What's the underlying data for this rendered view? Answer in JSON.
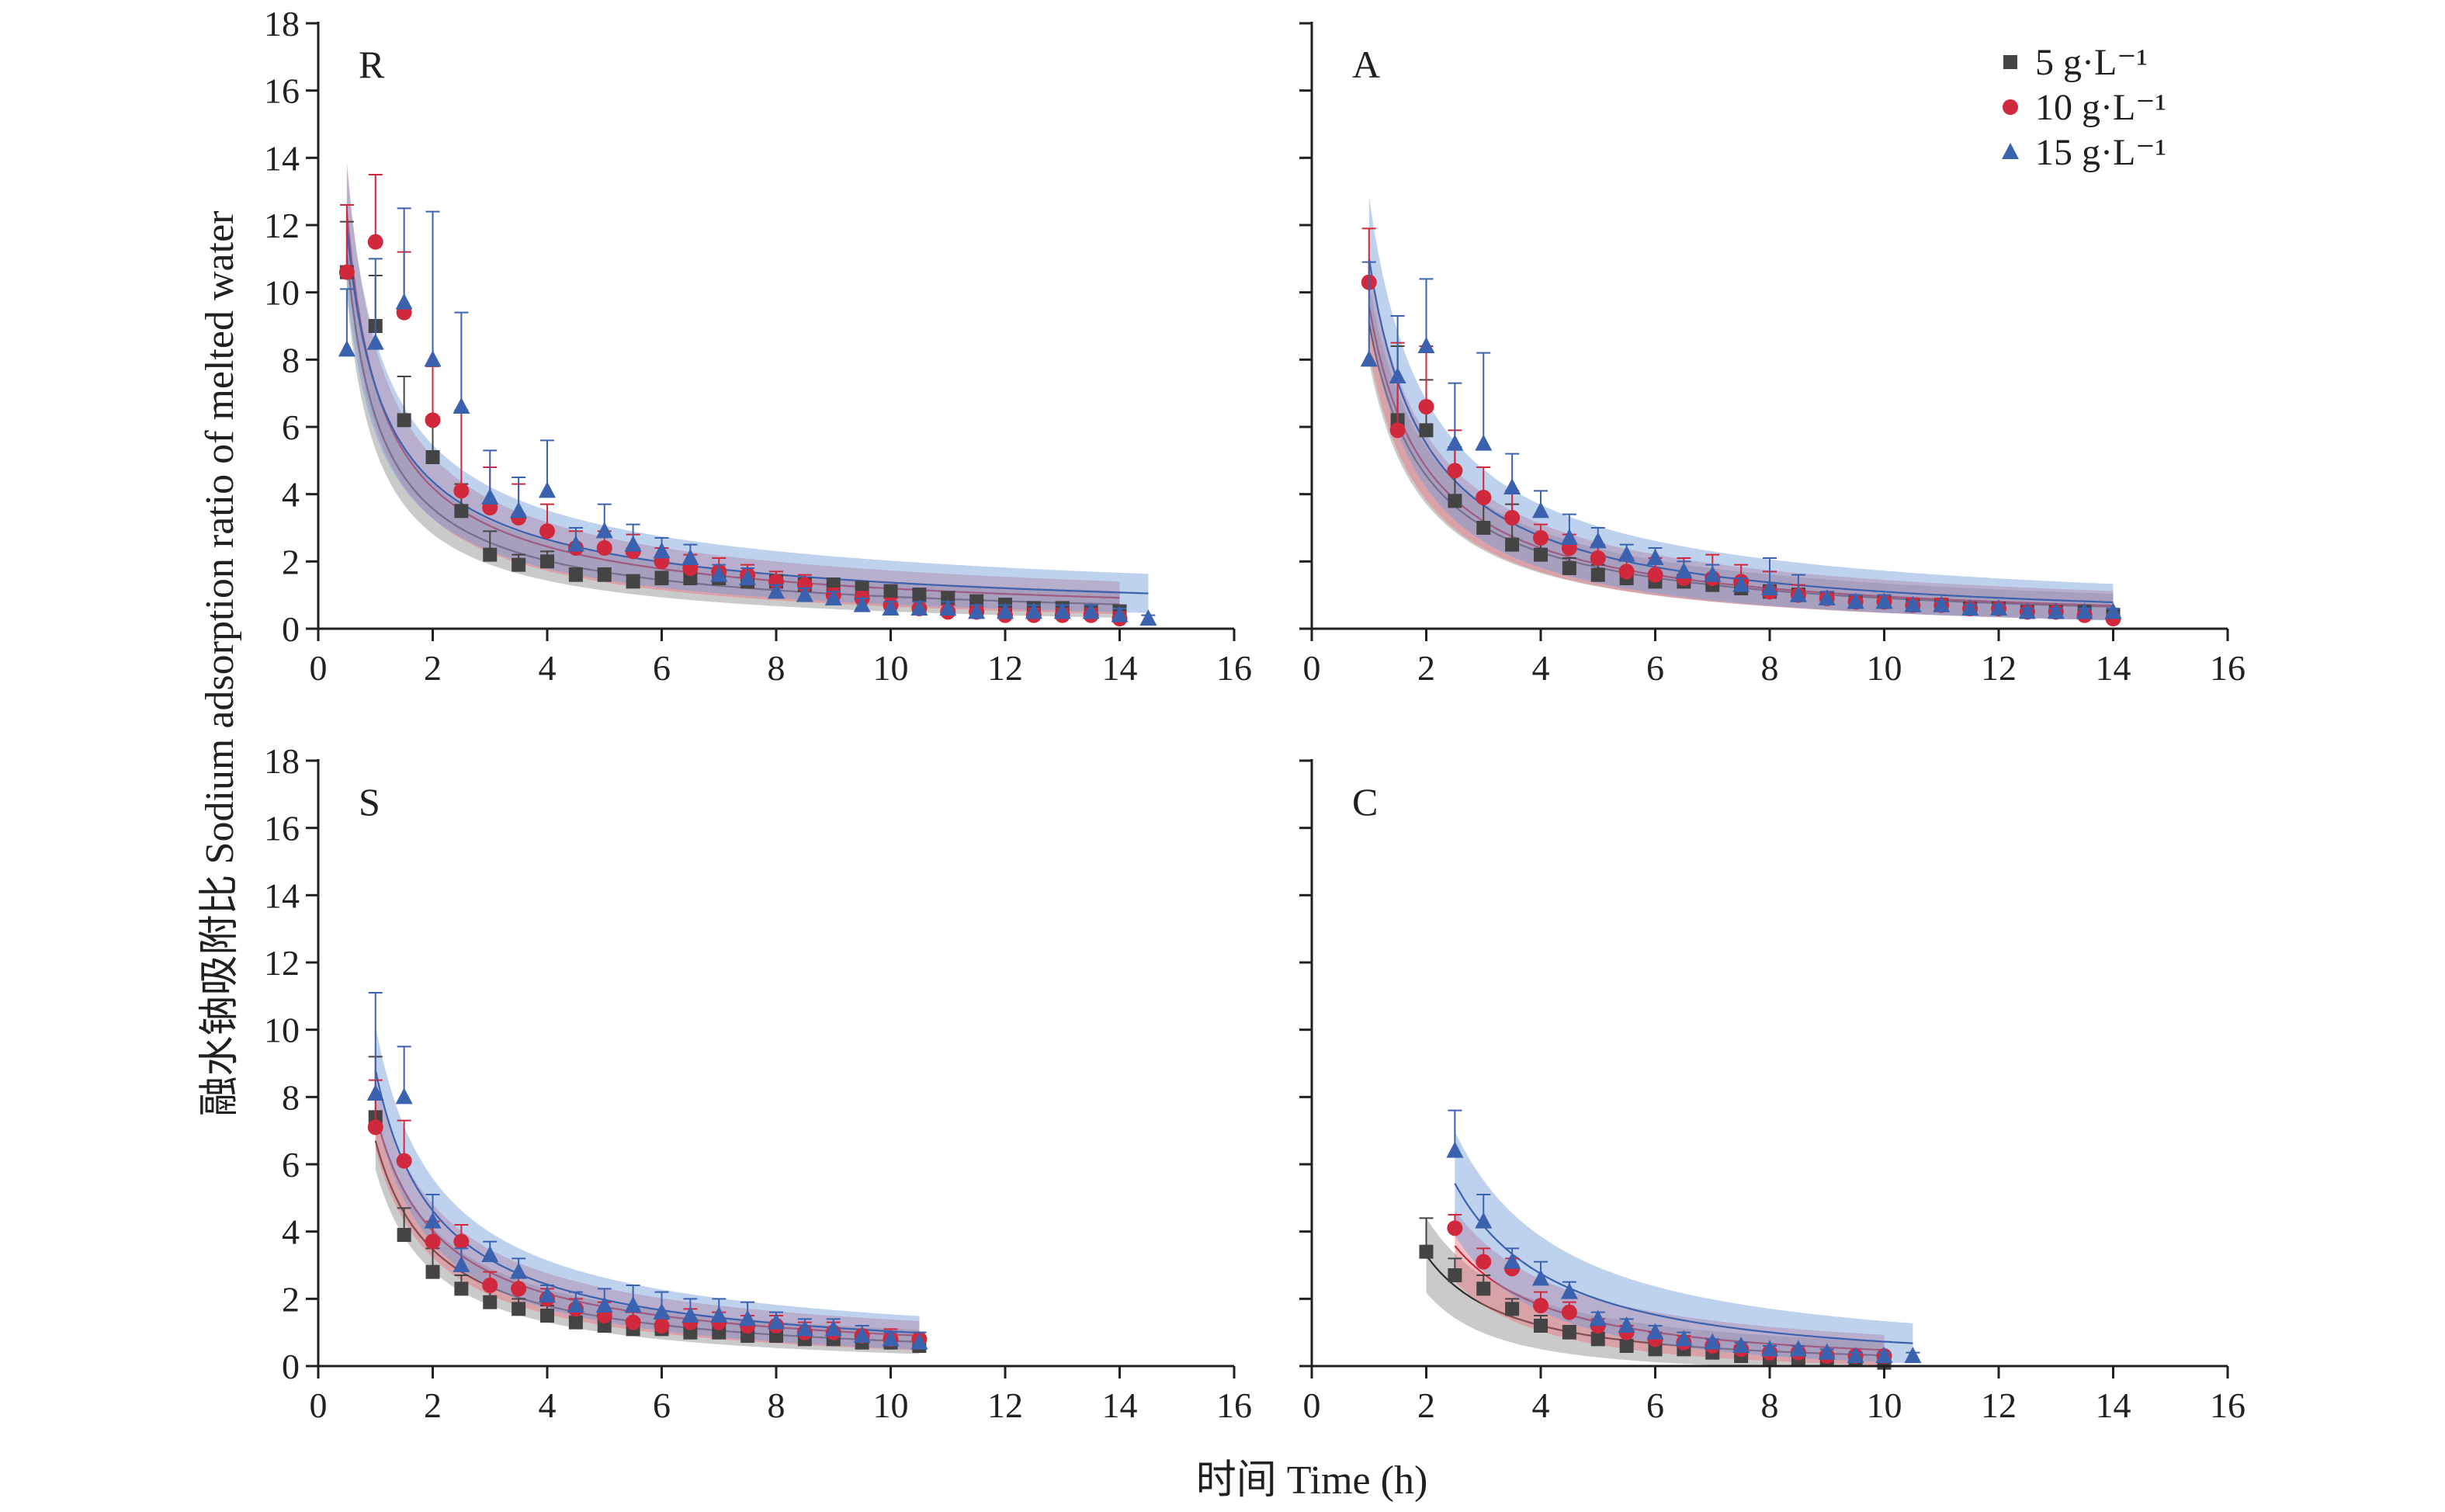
{
  "figure": {
    "ylabel": "融水钠吸附比 Sodium adsorption ratio of melted water",
    "xlabel": "时间 Time (h)"
  },
  "legend": [
    {
      "label": "5 g·L⁻¹",
      "color": "#444444",
      "marker": "square"
    },
    {
      "label": "10 g·L⁻¹",
      "color": "#d0283c",
      "marker": "circle"
    },
    {
      "label": "15 g·L⁻¹",
      "color": "#3a62ae",
      "marker": "triangle"
    }
  ],
  "colors": {
    "s5": {
      "marker": "#444444",
      "line": "#2c2c2c",
      "band": "#8a8a8a"
    },
    "s10": {
      "marker": "#d0283c",
      "line": "#c8283c",
      "band": "#e8707e"
    },
    "s15": {
      "marker": "#3a62ae",
      "line": "#3a62ae",
      "band": "#6f9ad8"
    }
  },
  "chart_data": [
    {
      "type": "scatter",
      "panel": "R",
      "xlim": [
        0,
        16
      ],
      "ylim": [
        0,
        18
      ],
      "xticks": [
        "0",
        "2",
        "4",
        "6",
        "8",
        "10",
        "12",
        "14",
        "16"
      ],
      "yticks": [
        "0",
        "2",
        "4",
        "6",
        "8",
        "10",
        "12",
        "14",
        "16",
        "18"
      ],
      "series": [
        {
          "name": "5 g·L⁻¹",
          "x": [
            0.5,
            1,
            1.5,
            2,
            2.5,
            3,
            3.5,
            4,
            4.5,
            5,
            5.5,
            6,
            6.5,
            7,
            7.5,
            8,
            8.5,
            9,
            9.5,
            10,
            10.5,
            11,
            11.5,
            12,
            12.5,
            13,
            13.5,
            14
          ],
          "y": [
            10.6,
            9.0,
            6.2,
            5.1,
            3.5,
            2.2,
            1.9,
            2.0,
            1.6,
            1.6,
            1.4,
            1.5,
            1.5,
            1.5,
            1.4,
            1.4,
            1.3,
            1.3,
            1.2,
            1.1,
            1.0,
            0.9,
            0.8,
            0.7,
            0.6,
            0.6,
            0.5,
            0.5
          ],
          "err": [
            1.5,
            1.5,
            1.3,
            1.2,
            0.8,
            0.7,
            0.3,
            0.3,
            0.2,
            0.2,
            0.2,
            0.2,
            0.2,
            0.2,
            0.2,
            0.2,
            0.2,
            0.2,
            0.2,
            0.2,
            0.2,
            0.2,
            0.2,
            0.2,
            0.2,
            0.2,
            0.2,
            0.2
          ]
        },
        {
          "name": "10 g·L⁻¹",
          "x": [
            0.5,
            1,
            1.5,
            2,
            2.5,
            3,
            3.5,
            4,
            4.5,
            5,
            5.5,
            6,
            6.5,
            7,
            7.5,
            8,
            8.5,
            9,
            9.5,
            10,
            10.5,
            11,
            11.5,
            12,
            12.5,
            13,
            13.5,
            14
          ],
          "y": [
            10.6,
            11.5,
            9.4,
            6.2,
            4.1,
            3.6,
            3.3,
            2.9,
            2.4,
            2.4,
            2.3,
            2.0,
            1.8,
            1.7,
            1.6,
            1.4,
            1.3,
            1.0,
            0.9,
            0.7,
            0.6,
            0.5,
            0.5,
            0.4,
            0.4,
            0.4,
            0.4,
            0.3
          ],
          "err": [
            2.0,
            2.0,
            1.8,
            1.6,
            2.4,
            1.2,
            1.0,
            0.8,
            0.5,
            0.5,
            0.5,
            0.4,
            0.4,
            0.4,
            0.3,
            0.3,
            0.3,
            0.2,
            0.2,
            0.2,
            0.2,
            0.2,
            0.2,
            0.2,
            0.2,
            0.2,
            0.2,
            0.2
          ]
        },
        {
          "name": "15 g·L⁻¹",
          "x": [
            0.5,
            1,
            1.5,
            2,
            2.5,
            3,
            3.5,
            4,
            4.5,
            5,
            5.5,
            6,
            6.5,
            7,
            7.5,
            8,
            8.5,
            9,
            9.5,
            10,
            10.5,
            11,
            11.5,
            12,
            12.5,
            13,
            13.5,
            14,
            14.5
          ],
          "y": [
            8.3,
            8.5,
            9.7,
            8.0,
            6.6,
            3.9,
            3.5,
            4.1,
            2.5,
            2.9,
            2.5,
            2.3,
            2.1,
            1.6,
            1.5,
            1.1,
            1.0,
            0.9,
            0.7,
            0.6,
            0.6,
            0.6,
            0.5,
            0.5,
            0.5,
            0.5,
            0.5,
            0.4,
            0.3
          ],
          "err": [
            1.8,
            2.5,
            2.8,
            4.4,
            2.8,
            1.4,
            1.0,
            1.5,
            0.5,
            0.8,
            0.6,
            0.4,
            0.4,
            0.3,
            0.3,
            0.2,
            0.2,
            0.2,
            0.2,
            0.2,
            0.2,
            0.2,
            0.2,
            0.2,
            0.2,
            0.2,
            0.2,
            0.2,
            0.1
          ]
        }
      ],
      "fits": [
        {
          "name": "5 g·L⁻¹",
          "a": 6.3,
          "b": 0.82,
          "x0": 0.5,
          "x1": 14,
          "band": 0.3
        },
        {
          "name": "10 g·L⁻¹",
          "a": 7.2,
          "b": 0.78,
          "x0": 0.5,
          "x1": 14,
          "band": 0.35
        },
        {
          "name": "15 g·L⁻¹",
          "a": 7.2,
          "b": 0.72,
          "x0": 0.5,
          "x1": 14.5,
          "band": 0.42
        }
      ]
    },
    {
      "type": "scatter",
      "panel": "A",
      "xlim": [
        0,
        16
      ],
      "ylim": [
        0,
        18
      ],
      "xticks": [
        "0",
        "2",
        "4",
        "6",
        "8",
        "10",
        "12",
        "14",
        "16"
      ],
      "yticks": [],
      "series": [
        {
          "name": "5 g·L⁻¹",
          "x": [
            1.5,
            2,
            2.5,
            3,
            3.5,
            4,
            4.5,
            5,
            5.5,
            6,
            6.5,
            7,
            7.5,
            8,
            8.5,
            9,
            9.5,
            10,
            10.5,
            11,
            11.5,
            12,
            12.5,
            13,
            13.5,
            14
          ],
          "y": [
            6.2,
            5.9,
            3.8,
            3.0,
            2.5,
            2.2,
            1.8,
            1.6,
            1.5,
            1.4,
            1.4,
            1.3,
            1.2,
            1.1,
            1.0,
            0.9,
            0.8,
            0.8,
            0.7,
            0.7,
            0.6,
            0.6,
            0.5,
            0.5,
            0.5,
            0.4
          ],
          "err": [
            2.2,
            1.5,
            1.6,
            1.0,
            1.2,
            0.5,
            0.3,
            0.3,
            0.2,
            0.2,
            0.2,
            0.2,
            0.2,
            0.2,
            0.2,
            0.2,
            0.1,
            0.1,
            0.1,
            0.1,
            0.1,
            0.1,
            0.1,
            0.1,
            0.1,
            0.1
          ]
        },
        {
          "name": "10 g·L⁻¹",
          "x": [
            1,
            1.5,
            2,
            2.5,
            3,
            3.5,
            4,
            4.5,
            5,
            5.5,
            6,
            6.5,
            7,
            7.5,
            8,
            8.5,
            9,
            9.5,
            10,
            10.5,
            11,
            11.5,
            12,
            12.5,
            13,
            13.5,
            14
          ],
          "y": [
            10.3,
            5.9,
            6.6,
            4.7,
            3.9,
            3.3,
            2.7,
            2.4,
            2.1,
            1.7,
            1.6,
            1.5,
            1.5,
            1.4,
            1.1,
            1.0,
            0.9,
            0.8,
            0.8,
            0.7,
            0.7,
            0.6,
            0.6,
            0.5,
            0.5,
            0.4,
            0.3
          ],
          "err": [
            1.6,
            2.6,
            1.8,
            1.2,
            0.9,
            0.8,
            0.4,
            0.4,
            0.4,
            0.4,
            0.5,
            0.6,
            0.7,
            0.5,
            0.6,
            0.3,
            0.2,
            0.2,
            0.2,
            0.2,
            0.2,
            0.1,
            0.1,
            0.1,
            0.1,
            0.1,
            0.1
          ]
        },
        {
          "name": "15 g·L⁻¹",
          "x": [
            1,
            1.5,
            2,
            2.5,
            3,
            3.5,
            4,
            4.5,
            5,
            5.5,
            6,
            6.5,
            7,
            7.5,
            8,
            8.5,
            9,
            9.5,
            10,
            10.5,
            11,
            11.5,
            12,
            12.5,
            13,
            13.5,
            14
          ],
          "y": [
            8.0,
            7.5,
            8.4,
            5.5,
            5.5,
            4.2,
            3.5,
            2.7,
            2.6,
            2.2,
            2.1,
            1.7,
            1.6,
            1.3,
            1.2,
            1.0,
            0.9,
            0.8,
            0.8,
            0.7,
            0.7,
            0.6,
            0.6,
            0.5,
            0.5,
            0.5,
            0.5
          ],
          "err": [
            2.9,
            1.8,
            2.0,
            1.8,
            2.7,
            1.0,
            0.6,
            0.7,
            0.4,
            0.3,
            0.3,
            0.3,
            0.3,
            0.2,
            0.9,
            0.6,
            0.2,
            0.2,
            0.2,
            0.1,
            0.1,
            0.1,
            0.1,
            0.1,
            0.1,
            0.1,
            0.1
          ]
        }
      ],
      "fits": [
        {
          "name": "5 g·L⁻¹",
          "a": 9.1,
          "b": 1.0,
          "x0": 1,
          "x1": 14,
          "band": 0.3
        },
        {
          "name": "10 g·L⁻¹",
          "a": 9.6,
          "b": 1.0,
          "x0": 1,
          "x1": 14,
          "band": 0.35
        },
        {
          "name": "15 g·L⁻¹",
          "a": 11.0,
          "b": 1.0,
          "x0": 1,
          "x1": 14,
          "band": 0.45
        }
      ]
    },
    {
      "type": "scatter",
      "panel": "S",
      "xlim": [
        0,
        16
      ],
      "ylim": [
        0,
        18
      ],
      "xticks": [
        "0",
        "2",
        "4",
        "6",
        "8",
        "10",
        "12",
        "14",
        "16"
      ],
      "yticks": [
        "0",
        "2",
        "4",
        "6",
        "8",
        "10",
        "12",
        "14",
        "16",
        "18"
      ],
      "series": [
        {
          "name": "5 g·L⁻¹",
          "x": [
            1,
            1.5,
            2,
            2.5,
            3,
            3.5,
            4,
            4.5,
            5,
            5.5,
            6,
            6.5,
            7,
            7.5,
            8,
            8.5,
            9,
            9.5,
            10,
            10.5
          ],
          "y": [
            7.4,
            3.9,
            2.8,
            2.3,
            1.9,
            1.7,
            1.5,
            1.3,
            1.2,
            1.1,
            1.1,
            1.0,
            1.0,
            0.9,
            0.9,
            0.8,
            0.8,
            0.7,
            0.7,
            0.6
          ],
          "err": [
            1.8,
            0.8,
            0.7,
            0.4,
            0.4,
            0.3,
            0.3,
            0.3,
            0.3,
            0.3,
            0.3,
            0.3,
            0.3,
            0.3,
            0.2,
            0.2,
            0.2,
            0.2,
            0.2,
            0.2
          ]
        },
        {
          "name": "10 g·L⁻¹",
          "x": [
            1,
            1.5,
            2,
            2.5,
            3,
            3.5,
            4,
            4.5,
            5,
            5.5,
            6,
            6.5,
            7,
            7.5,
            8,
            8.5,
            9,
            9.5,
            10,
            10.5
          ],
          "y": [
            7.1,
            6.1,
            3.7,
            3.7,
            2.4,
            2.3,
            2.0,
            1.7,
            1.5,
            1.3,
            1.2,
            1.3,
            1.3,
            1.2,
            1.2,
            1.0,
            1.0,
            0.9,
            0.8,
            0.8
          ],
          "err": [
            1.4,
            1.2,
            0.6,
            0.5,
            0.4,
            0.4,
            0.3,
            0.3,
            0.4,
            0.3,
            0.3,
            0.4,
            0.3,
            0.3,
            0.3,
            0.3,
            0.3,
            0.3,
            0.3,
            0.2
          ]
        },
        {
          "name": "15 g·L⁻¹",
          "x": [
            1,
            1.5,
            2,
            2.5,
            3,
            3.5,
            4,
            4.5,
            5,
            5.5,
            6,
            6.5,
            7,
            7.5,
            8,
            8.5,
            9,
            9.5,
            10,
            10.5
          ],
          "y": [
            8.1,
            8.0,
            4.3,
            3.0,
            3.3,
            2.8,
            2.1,
            1.8,
            1.8,
            1.8,
            1.6,
            1.5,
            1.5,
            1.4,
            1.3,
            1.1,
            1.1,
            0.9,
            0.8,
            0.7
          ],
          "err": [
            3.0,
            1.5,
            0.8,
            0.5,
            0.4,
            0.4,
            0.3,
            0.4,
            0.5,
            0.6,
            0.6,
            0.5,
            0.5,
            0.5,
            0.3,
            0.3,
            0.3,
            0.3,
            0.2,
            0.3
          ]
        }
      ],
      "fits": [
        {
          "name": "5 g·L⁻¹",
          "a": 6.7,
          "b": 0.95,
          "x0": 1,
          "x1": 10.5,
          "band": 0.25
        },
        {
          "name": "10 g·L⁻¹",
          "a": 7.5,
          "b": 0.9,
          "x0": 1,
          "x1": 10.5,
          "band": 0.3
        },
        {
          "name": "15 g·L⁻¹",
          "a": 8.8,
          "b": 0.93,
          "x0": 1,
          "x1": 10.5,
          "band": 0.35
        }
      ]
    },
    {
      "type": "scatter",
      "panel": "C",
      "xlim": [
        0,
        16
      ],
      "ylim": [
        0,
        18
      ],
      "xticks": [
        "0",
        "2",
        "4",
        "6",
        "8",
        "10",
        "12",
        "14",
        "16"
      ],
      "yticks": [],
      "series": [
        {
          "name": "5 g·L⁻¹",
          "x": [
            2,
            2.5,
            3,
            3.5,
            4,
            4.5,
            5,
            5.5,
            6,
            6.5,
            7,
            7.5,
            8,
            8.5,
            9,
            9.5,
            10
          ],
          "y": [
            3.4,
            2.7,
            2.3,
            1.7,
            1.2,
            1.0,
            0.8,
            0.6,
            0.5,
            0.5,
            0.4,
            0.3,
            0.2,
            0.2,
            0.2,
            0.2,
            0.1
          ],
          "err": [
            1.0,
            0.5,
            0.4,
            0.3,
            0.3,
            0.2,
            0.2,
            0.1,
            0.1,
            0.1,
            0.1,
            0.1,
            0.1,
            0.1,
            0.1,
            0.1,
            0.1
          ]
        },
        {
          "name": "10 g·L⁻¹",
          "x": [
            2.5,
            3,
            3.5,
            4,
            4.5,
            5,
            5.5,
            6,
            6.5,
            7,
            7.5,
            8,
            8.5,
            9,
            9.5,
            10
          ],
          "y": [
            4.1,
            3.1,
            2.9,
            1.8,
            1.6,
            1.2,
            1.0,
            0.8,
            0.7,
            0.6,
            0.5,
            0.4,
            0.4,
            0.3,
            0.3,
            0.3
          ],
          "err": [
            0.4,
            0.4,
            0.3,
            0.4,
            0.3,
            0.2,
            0.2,
            0.2,
            0.2,
            0.2,
            0.1,
            0.1,
            0.1,
            0.1,
            0.1,
            0.1
          ]
        },
        {
          "name": "15 g·L⁻¹",
          "x": [
            2.5,
            3,
            3.5,
            4,
            4.5,
            5,
            5.5,
            6,
            6.5,
            7,
            7.5,
            8,
            8.5,
            9,
            9.5,
            10,
            10.5
          ],
          "y": [
            6.4,
            4.3,
            3.1,
            2.6,
            2.2,
            1.4,
            1.2,
            1.0,
            0.8,
            0.7,
            0.6,
            0.5,
            0.5,
            0.4,
            0.3,
            0.3,
            0.3
          ],
          "err": [
            1.2,
            0.8,
            0.4,
            0.5,
            0.3,
            0.2,
            0.2,
            0.2,
            0.2,
            0.1,
            0.1,
            0.1,
            0.1,
            0.1,
            0.1,
            0.1,
            0.1
          ]
        }
      ],
      "fits": [
        {
          "name": "5 g·L⁻¹",
          "a": 9.0,
          "b": 1.45,
          "x0": 2,
          "x1": 10,
          "band": 0.5
        },
        {
          "name": "10 g·L⁻¹",
          "a": 13.5,
          "b": 1.45,
          "x0": 2.5,
          "x1": 10,
          "band": 0.45
        },
        {
          "name": "15 g·L⁻¹",
          "a": 20.5,
          "b": 1.45,
          "x0": 2.5,
          "x1": 10.5,
          "band": 0.55
        }
      ]
    }
  ]
}
